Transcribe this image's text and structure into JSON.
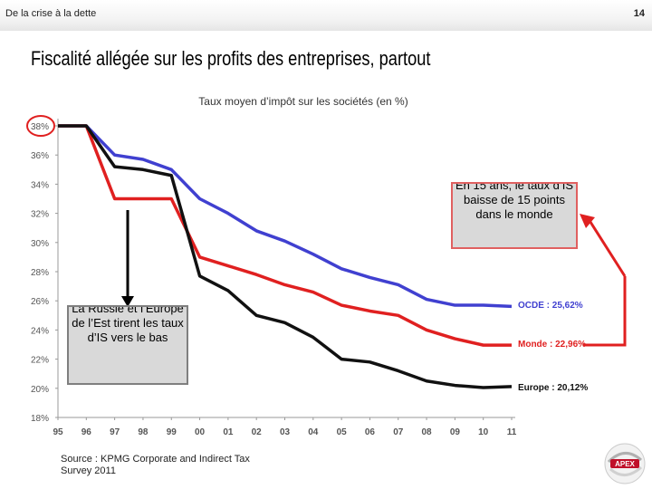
{
  "header": {
    "section": "De la crise à la dette",
    "page_number": "14"
  },
  "slide": {
    "title": "Fiscalité allégée sur les profits des entreprises, partout"
  },
  "chart_data": {
    "type": "line",
    "title": "Taux moyen d’impôt sur les sociétés (en %)",
    "x": [
      "95",
      "96",
      "97",
      "98",
      "99",
      "00",
      "01",
      "02",
      "03",
      "04",
      "05",
      "06",
      "07",
      "08",
      "09",
      "10",
      "11"
    ],
    "ylim": [
      18,
      38
    ],
    "yticks": [
      "18%",
      "20%",
      "22%",
      "24%",
      "26%",
      "28%",
      "30%",
      "32%",
      "34%",
      "36%",
      "38%"
    ],
    "grid": false,
    "series": [
      {
        "name": "OCDE : 25,62%",
        "color": "#4040d0",
        "values": [
          38.0,
          38.0,
          36.0,
          35.7,
          35.0,
          33.0,
          32.0,
          30.8,
          30.1,
          29.2,
          28.2,
          27.6,
          27.1,
          26.1,
          25.7,
          25.7,
          25.62
        ]
      },
      {
        "name": "Monde : 22,96%",
        "color": "#e02020",
        "values": [
          38.0,
          38.0,
          33.0,
          33.0,
          33.0,
          29.0,
          28.4,
          27.8,
          27.1,
          26.6,
          25.7,
          25.3,
          25.0,
          24.0,
          23.4,
          22.96,
          22.96
        ]
      },
      {
        "name": "Europe : 20,12%",
        "color": "#111111",
        "values": [
          38.0,
          38.0,
          35.2,
          35.0,
          34.6,
          27.7,
          26.7,
          25.0,
          24.5,
          23.5,
          22.0,
          21.8,
          21.2,
          20.5,
          20.2,
          20.05,
          20.12
        ]
      }
    ],
    "highlight_tick": "38%",
    "annotations": [
      "La Russie et l’Europe de l’Est tirent les taux d’IS vers le bas",
      "En 15 ans, le taux d’IS baisse de 15 points dans le monde"
    ]
  },
  "callouts": {
    "russia": "La Russie et l’Europe de l’Est tirent les taux d’IS vers le bas",
    "world": "En 15 ans, le taux d’IS baisse de 15 points dans le monde"
  },
  "source": {
    "line1": "Source : KPMG Corporate and Indirect Tax",
    "line2": "Survey 2011"
  },
  "logo": {
    "text": "APEX"
  },
  "colors": {
    "ocde": "#4040d0",
    "monde": "#e02020",
    "europe": "#111111",
    "highlight": "#e02020"
  }
}
